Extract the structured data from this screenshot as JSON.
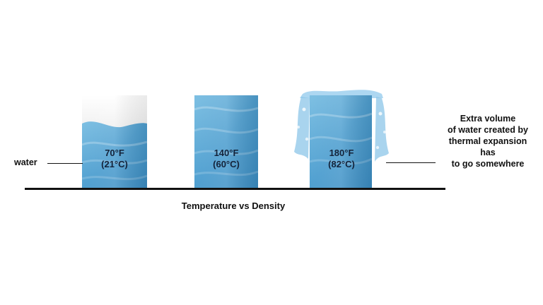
{
  "labels": {
    "water": "water",
    "caption": "Temperature vs Density"
  },
  "beakers": [
    {
      "temp_f": "70°F",
      "temp_c": "(21°C)",
      "state": "partly-filled"
    },
    {
      "temp_f": "140°F",
      "temp_c": "(60°C)",
      "state": "full"
    },
    {
      "temp_f": "180°F",
      "temp_c": "(82°C)",
      "state": "overflowing"
    }
  ],
  "note": {
    "lines": [
      "Extra volume",
      "of water created by",
      "thermal expansion",
      "has",
      "to go somewhere"
    ]
  },
  "colors": {
    "water_light": "#6fb4db",
    "water_dark": "#3d8fc4",
    "empty_top": "#f4f4f4",
    "empty_bottom": "#cfcfcf",
    "line": "#111111"
  }
}
